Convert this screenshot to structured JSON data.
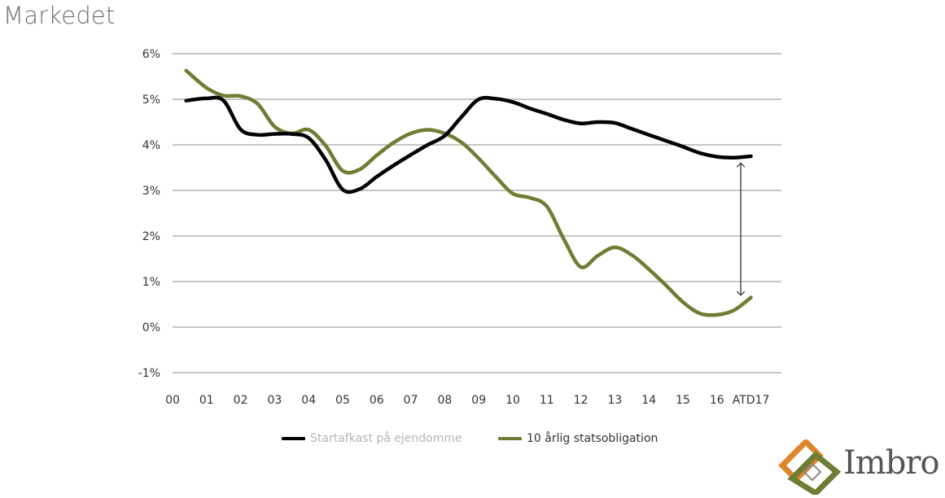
{
  "slide": {
    "title": "Markedet"
  },
  "chart_data": {
    "type": "line",
    "categories": [
      "00",
      "01",
      "02",
      "03",
      "04",
      "05",
      "06",
      "07",
      "08",
      "09",
      "10",
      "11",
      "12",
      "13",
      "14",
      "15",
      "16",
      "ATD17"
    ],
    "y_ticks": [
      "-1%",
      "0%",
      "1%",
      "2%",
      "3%",
      "4%",
      "5%",
      "6%"
    ],
    "ylim": [
      -1,
      6
    ],
    "y_unit": "%",
    "grid": "horizontal",
    "legend": "bottom",
    "series": [
      {
        "name": "Startafkast på ejendomme",
        "color": "#000000",
        "x": [
          0.4,
          1.0,
          1.5,
          2.0,
          2.5,
          3.0,
          3.5,
          4.0,
          4.5,
          5.0,
          5.5,
          6.0,
          6.5,
          7.0,
          7.5,
          8.0,
          8.5,
          9.0,
          9.5,
          10.0,
          10.5,
          11.0,
          11.5,
          12.0,
          12.5,
          13.0,
          13.5,
          14.0,
          14.5,
          15.0,
          15.5,
          16.0,
          16.5,
          17.0
        ],
        "values": [
          4.97,
          5.02,
          4.97,
          4.34,
          4.22,
          4.24,
          4.24,
          4.15,
          3.67,
          3.02,
          3.03,
          3.3,
          3.55,
          3.78,
          4.0,
          4.2,
          4.62,
          5.0,
          5.01,
          4.94,
          4.8,
          4.68,
          4.55,
          4.47,
          4.5,
          4.48,
          4.35,
          4.22,
          4.09,
          3.96,
          3.82,
          3.74,
          3.72,
          3.75
        ]
      },
      {
        "name": "10 årlig statsobligation",
        "color": "#6d7e34",
        "x": [
          0.4,
          1.0,
          1.5,
          2.0,
          2.5,
          3.0,
          3.5,
          4.0,
          4.5,
          5.0,
          5.5,
          6.0,
          6.5,
          7.0,
          7.5,
          8.0,
          8.5,
          9.0,
          9.5,
          10.0,
          10.5,
          11.0,
          11.5,
          12.0,
          12.5,
          13.0,
          13.5,
          14.0,
          14.5,
          15.0,
          15.5,
          16.0,
          16.5,
          17.0
        ],
        "values": [
          5.63,
          5.25,
          5.08,
          5.07,
          4.9,
          4.4,
          4.25,
          4.33,
          3.98,
          3.43,
          3.46,
          3.77,
          4.05,
          4.25,
          4.33,
          4.25,
          4.05,
          3.7,
          3.3,
          2.93,
          2.84,
          2.65,
          1.93,
          1.32,
          1.57,
          1.75,
          1.58,
          1.27,
          0.92,
          0.55,
          0.3,
          0.27,
          0.37,
          0.65
        ]
      }
    ],
    "annotation": {
      "type": "double-arrow",
      "x": 16.7,
      "from": 3.6,
      "to": 0.7
    }
  },
  "logo": {
    "text": "Imbro",
    "colors": {
      "orange": "#e0862a",
      "green": "#6d7e34",
      "gray": "#8a8a8a"
    }
  }
}
